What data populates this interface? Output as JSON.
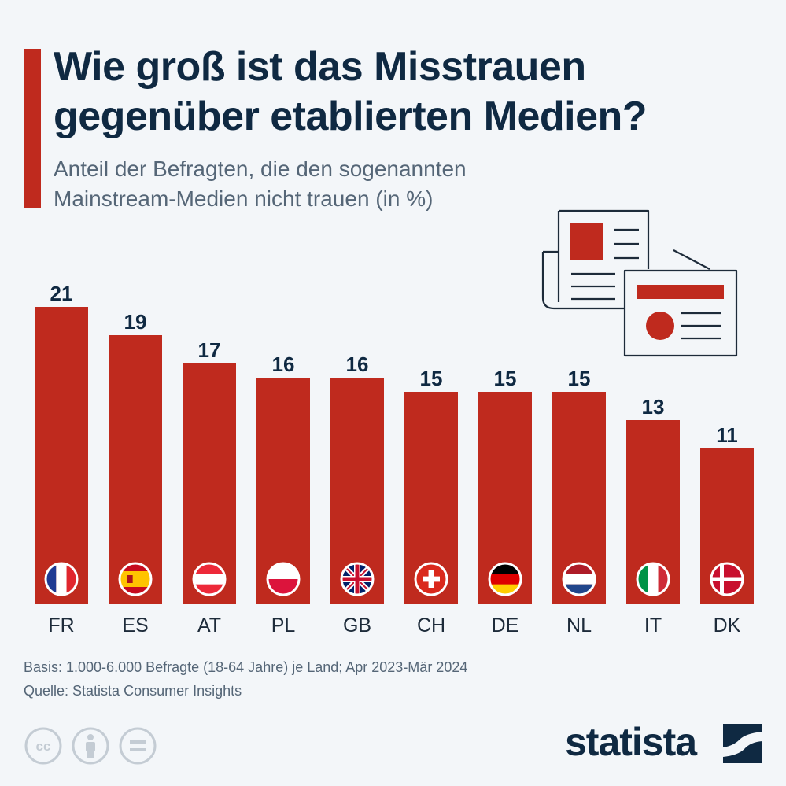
{
  "header": {
    "title_line1": "Wie groß ist das Misstrauen",
    "title_line2": "gegenüber etablierten Medien?",
    "subtitle_line1": "Anteil der Befragten, die den sogenannten",
    "subtitle_line2": "Mainstream-Medien nicht trauen (in %)"
  },
  "chart_data": {
    "type": "bar",
    "categories": [
      "FR",
      "ES",
      "AT",
      "PL",
      "GB",
      "CH",
      "DE",
      "NL",
      "IT",
      "DK"
    ],
    "values": [
      21,
      19,
      17,
      16,
      16,
      15,
      15,
      15,
      13,
      11
    ],
    "title": "Wie groß ist das Misstrauen gegenüber etablierten Medien?",
    "subtitle": "Anteil der Befragten, die den sogenannten Mainstream-Medien nicht trauen (in %)",
    "ylim": [
      0,
      21
    ],
    "grid": false,
    "bar_color": "#bf2a1e",
    "flag_icons": [
      "flag-france-icon",
      "flag-spain-icon",
      "flag-austria-icon",
      "flag-poland-icon",
      "flag-uk-icon",
      "flag-switzerland-icon",
      "flag-germany-icon",
      "flag-netherlands-icon",
      "flag-italy-icon",
      "flag-denmark-icon"
    ]
  },
  "footer": {
    "basis": "Basis: 1.000-6.000 Befragte (18-64 Jahre) je Land; Apr 2023-Mär 2024",
    "source": "Quelle: Statista Consumer Insights"
  },
  "branding": {
    "logo_text": "statista",
    "license_icons": [
      "cc-icon",
      "attribution-icon",
      "no-derivatives-icon"
    ]
  },
  "colors": {
    "accent": "#bf2a1e",
    "title": "#0f2942",
    "text": "#556677",
    "background": "#f3f6f9"
  }
}
